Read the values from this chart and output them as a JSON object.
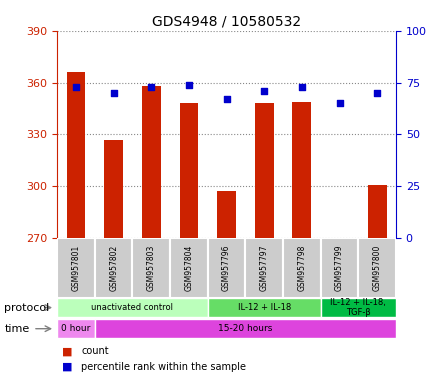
{
  "title": "GDS4948 / 10580532",
  "samples": [
    "GSM957801",
    "GSM957802",
    "GSM957803",
    "GSM957804",
    "GSM957796",
    "GSM957797",
    "GSM957798",
    "GSM957799",
    "GSM957800"
  ],
  "count_values": [
    366,
    327,
    358,
    348,
    297,
    348,
    349,
    270,
    301
  ],
  "percentile_values": [
    73,
    70,
    73,
    74,
    67,
    71,
    73,
    65,
    70
  ],
  "ylim_left": [
    270,
    390
  ],
  "ylim_right": [
    0,
    100
  ],
  "yticks_left": [
    270,
    300,
    330,
    360,
    390
  ],
  "yticks_right": [
    0,
    25,
    50,
    75,
    100
  ],
  "bar_color": "#cc2200",
  "dot_color": "#0000cc",
  "bar_bottom": 270,
  "protocol_groups": [
    {
      "label": "unactivated control",
      "start": 0,
      "end": 4,
      "color": "#bbffbb"
    },
    {
      "label": "IL-12 + IL-18",
      "start": 4,
      "end": 7,
      "color": "#66dd66"
    },
    {
      "label": "IL-12 + IL-18,\nTGF-β",
      "start": 7,
      "end": 9,
      "color": "#00bb44"
    }
  ],
  "time_groups": [
    {
      "label": "0 hour",
      "start": 0,
      "end": 1,
      "color": "#ee88ee"
    },
    {
      "label": "15-20 hours",
      "start": 1,
      "end": 9,
      "color": "#dd44dd"
    }
  ],
  "protocol_row_label": "protocol",
  "time_row_label": "time",
  "legend_count_label": "count",
  "legend_pct_label": "percentile rank within the sample",
  "grid_color": "#888888",
  "bg_color": "#ffffff",
  "left_axis_color": "#cc2200",
  "right_axis_color": "#0000cc"
}
